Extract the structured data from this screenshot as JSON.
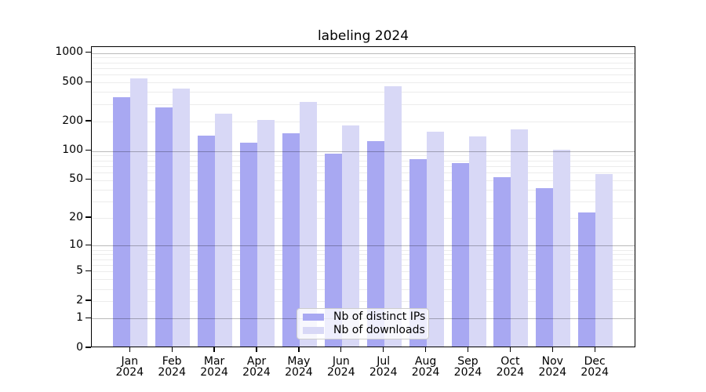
{
  "chart_data": {
    "type": "bar",
    "title": "labeling 2024",
    "categories": [
      "Jan",
      "Feb",
      "Mar",
      "Apr",
      "May",
      "Jun",
      "Jul",
      "Aug",
      "Sep",
      "Oct",
      "Nov",
      "Dec"
    ],
    "year_label": "2024",
    "series": [
      {
        "name": "Nb of distinct IPs",
        "color": "#a8a8f2",
        "values": [
          340,
          268,
          138,
          117,
          146,
          90,
          122,
          79,
          72,
          52,
          40,
          22
        ]
      },
      {
        "name": "Nb of downloads",
        "color": "#d8d8f6",
        "values": [
          530,
          415,
          232,
          199,
          307,
          175,
          441,
          151,
          137,
          161,
          99,
          56
        ]
      }
    ],
    "xlabel": "",
    "ylabel": "",
    "yscale": "log1p",
    "ylim": [
      0,
      1150
    ],
    "yticks": [
      1000,
      500,
      200,
      100,
      50,
      20,
      10,
      5,
      2,
      1,
      0
    ],
    "grid_major": [
      1,
      10,
      100,
      1000
    ],
    "grid_minor": [
      2,
      3,
      4,
      5,
      6,
      7,
      8,
      9,
      20,
      30,
      40,
      50,
      60,
      70,
      80,
      90,
      200,
      300,
      400,
      500,
      600,
      700,
      800,
      900
    ],
    "legend_position": "lower center",
    "grid": true
  }
}
